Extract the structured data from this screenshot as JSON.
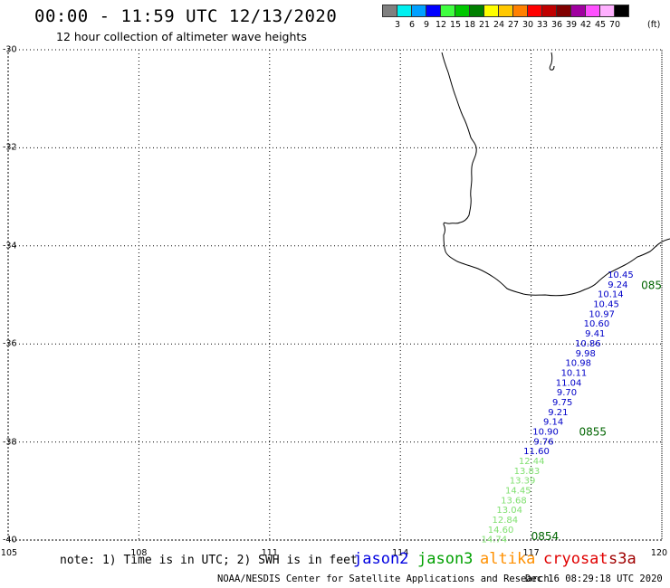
{
  "header": {
    "title": "00:00 - 11:59 UTC 12/13/2020",
    "subtitle": "12 hour collection of altimeter wave heights"
  },
  "color_scale": {
    "unit": "(ft)",
    "colors": [
      "#808080",
      "#00f0f0",
      "#00a0ff",
      "#0000ff",
      "#40ff40",
      "#00c800",
      "#008000",
      "#ffff00",
      "#ffc800",
      "#ff8000",
      "#ff0000",
      "#c00000",
      "#800000",
      "#a000a0",
      "#ff50ff",
      "#ffb0ff",
      "#000000"
    ],
    "labels": [
      "3",
      "6",
      "9",
      "12",
      "15",
      "18",
      "21",
      "24",
      "27",
      "30",
      "33",
      "36",
      "39",
      "42",
      "45",
      "70"
    ]
  },
  "axes": {
    "lat_labels": [
      "-30",
      "-32",
      "-34",
      "-36",
      "-38",
      "-40"
    ],
    "lat_values": [
      -30,
      -32,
      -34,
      -36,
      -38,
      -40
    ],
    "lon_labels": [
      "105",
      "108",
      "111",
      "114",
      "117",
      "120"
    ],
    "lon_values": [
      105,
      108,
      111,
      114,
      117,
      120
    ],
    "lat_range": [
      -40,
      -30
    ],
    "lon_range": [
      105,
      120
    ]
  },
  "tracks": [
    {
      "satellite": "jason2",
      "color": "#0000c8",
      "points": [
        {
          "lat": -34.65,
          "lon": 119.35,
          "swh": "10.45"
        },
        {
          "lat": -34.85,
          "lon": 119.22,
          "swh": "9.24"
        },
        {
          "lat": -35.05,
          "lon": 119.12,
          "swh": "10.14"
        },
        {
          "lat": -35.25,
          "lon": 119.02,
          "swh": "10.45"
        },
        {
          "lat": -35.45,
          "lon": 118.92,
          "swh": "10.97"
        },
        {
          "lat": -35.65,
          "lon": 118.8,
          "swh": "10.60"
        },
        {
          "lat": -35.85,
          "lon": 118.7,
          "swh": "9.41"
        },
        {
          "lat": -36.05,
          "lon": 118.6,
          "swh": "10.86"
        },
        {
          "lat": -36.25,
          "lon": 118.48,
          "swh": "9.98"
        },
        {
          "lat": -36.45,
          "lon": 118.38,
          "swh": "10.98"
        },
        {
          "lat": -36.65,
          "lon": 118.28,
          "swh": "10.11"
        },
        {
          "lat": -36.85,
          "lon": 118.16,
          "swh": "11.04"
        },
        {
          "lat": -37.05,
          "lon": 118.05,
          "swh": "9.70"
        },
        {
          "lat": -37.25,
          "lon": 117.95,
          "swh": "9.75"
        },
        {
          "lat": -37.45,
          "lon": 117.85,
          "swh": "9.21"
        },
        {
          "lat": -37.65,
          "lon": 117.74,
          "swh": "9.14"
        },
        {
          "lat": -37.85,
          "lon": 117.63,
          "swh": "10.90"
        },
        {
          "lat": -38.05,
          "lon": 117.52,
          "swh": "9.76"
        },
        {
          "lat": -38.25,
          "lon": 117.42,
          "swh": "11.60"
        }
      ],
      "time_labels": [
        {
          "lat": -34.88,
          "lon": 120.0,
          "text": "085"
        },
        {
          "lat": -37.87,
          "lon": 118.1,
          "text": "0855"
        }
      ]
    },
    {
      "satellite": "jason3",
      "color": "#80e070",
      "points": [
        {
          "lat": -38.45,
          "lon": 117.31,
          "swh": "12.44"
        },
        {
          "lat": -38.65,
          "lon": 117.2,
          "swh": "13.83"
        },
        {
          "lat": -38.85,
          "lon": 117.1,
          "swh": "13.39"
        },
        {
          "lat": -39.05,
          "lon": 117.0,
          "swh": "14.45"
        },
        {
          "lat": -39.25,
          "lon": 116.9,
          "swh": "13.68"
        },
        {
          "lat": -39.45,
          "lon": 116.8,
          "swh": "13.04"
        },
        {
          "lat": -39.65,
          "lon": 116.7,
          "swh": "12.84"
        },
        {
          "lat": -39.85,
          "lon": 116.6,
          "swh": "14.60"
        },
        {
          "lat": -40.05,
          "lon": 116.45,
          "swh": "14.74"
        }
      ],
      "time_labels": [
        {
          "lat": -40.0,
          "lon": 117.0,
          "text": "0854"
        }
      ]
    }
  ],
  "note": "note: 1) Time is in UTC; 2) SWH is in feet",
  "legend": [
    {
      "label": "jason2",
      "color": "#0000e0"
    },
    {
      "label": "jason3",
      "color": "#00a000"
    },
    {
      "label": "altika",
      "color": "#ff9000"
    },
    {
      "label": "cryosat",
      "color": "#e00000"
    },
    {
      "label": "s3a",
      "color": "#a00000"
    }
  ],
  "footer": {
    "credit": "NOAA/NESDIS Center for Satellite Applications and Research",
    "timestamp": "Dec 16 08:29:18 UTC 2020"
  }
}
